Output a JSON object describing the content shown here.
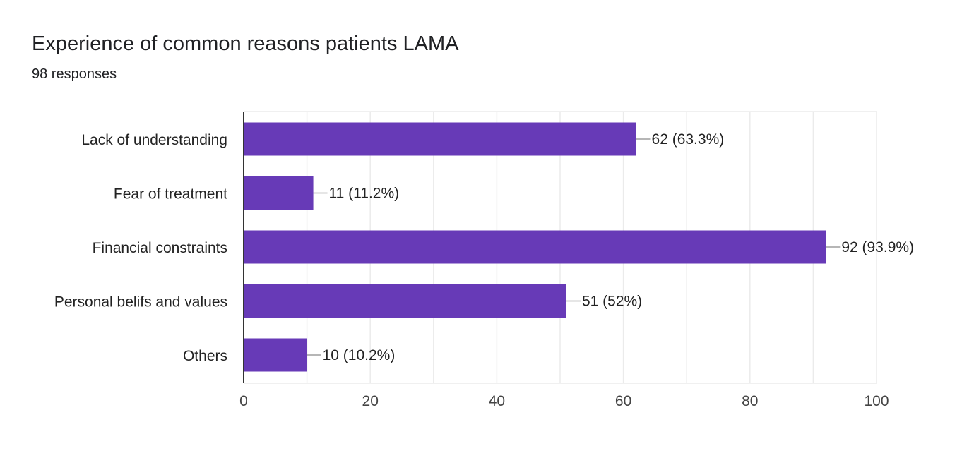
{
  "chart_data": {
    "type": "bar",
    "orientation": "horizontal",
    "title": "Experience of common reasons patients LAMA",
    "subtitle": "98 responses",
    "categories": [
      "Lack of understanding",
      "Fear of treatment",
      "Financial constraints",
      "Personal belifs and values",
      "Others"
    ],
    "values": [
      62,
      11,
      92,
      51,
      10
    ],
    "data_labels": [
      "62 (63.3%)",
      "11 (11.2%)",
      "92 (93.9%)",
      "51 (52%)",
      "10 (10.2%)"
    ],
    "xlim": [
      0,
      100
    ],
    "x_ticks": [
      0,
      20,
      40,
      60,
      80,
      100
    ],
    "x_tick_labels": [
      "0",
      "20",
      "40",
      "60",
      "80",
      "100"
    ],
    "minor_grid_step": 10,
    "grid": true,
    "xlabel": "",
    "ylabel": "",
    "colors": {
      "bar": "#673ab7",
      "grid": "#ebebeb",
      "axis": "#333333",
      "leader": "#9e9e9e"
    }
  }
}
